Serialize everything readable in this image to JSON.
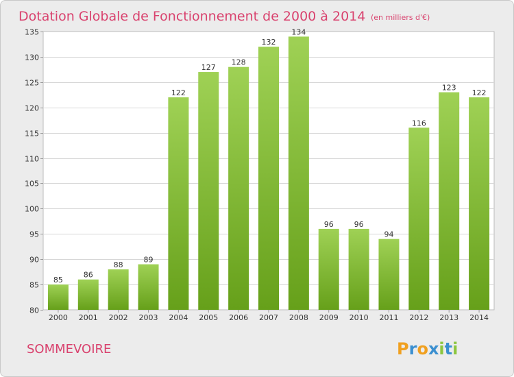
{
  "chart_data": {
    "type": "bar",
    "title": "Dotation Globale de Fonctionnement de 2000 à 2014",
    "subtitle": "(en milliers d'€)",
    "categories": [
      "2000",
      "2001",
      "2002",
      "2003",
      "2004",
      "2005",
      "2006",
      "2007",
      "2008",
      "2009",
      "2010",
      "2011",
      "2012",
      "2013",
      "2014"
    ],
    "values": [
      85,
      86,
      88,
      89,
      122,
      127,
      128,
      132,
      134,
      96,
      96,
      94,
      116,
      123,
      122
    ],
    "ylim": [
      80,
      135
    ],
    "yticks": [
      80,
      85,
      90,
      95,
      100,
      105,
      110,
      115,
      120,
      125,
      130,
      135
    ],
    "xlabel": "",
    "ylabel": "",
    "grid": true,
    "bar_color_top": "#9fd155",
    "bar_color_bottom": "#66a01a"
  },
  "commune_name": "SOMMEVOIRE",
  "logo": {
    "letters": [
      "P",
      "r",
      "o",
      "x",
      "i",
      "t",
      "i"
    ],
    "colors": [
      "#f0a020",
      "#3a8fd0",
      "#f0a020",
      "#3a8fd0",
      "#8cc63f",
      "#3a8fd0",
      "#8cc63f"
    ]
  }
}
